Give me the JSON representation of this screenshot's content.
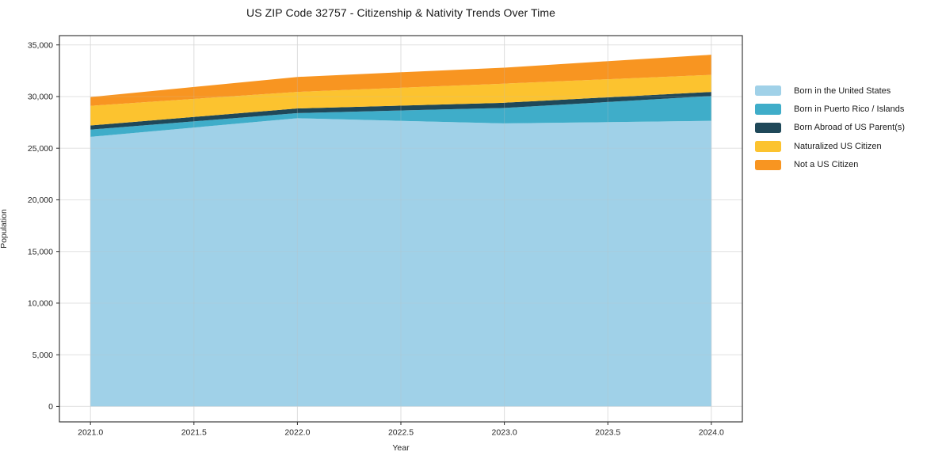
{
  "chart_data": {
    "type": "area",
    "stacked": true,
    "title": "US ZIP Code 32757 - Citizenship & Nativity Trends Over Time",
    "xlabel": "Year",
    "ylabel": "Population",
    "x": [
      2021,
      2022,
      2023,
      2024
    ],
    "series": [
      {
        "name": "Born in the United States",
        "color": "#A0D1E8",
        "values": [
          26100,
          27900,
          27400,
          27650
        ]
      },
      {
        "name": "Born in Puerto Rico / Islands",
        "color": "#3FADC9",
        "values": [
          700,
          500,
          1500,
          2400
        ]
      },
      {
        "name": "Born Abroad of US Parent(s)",
        "color": "#1F4859",
        "values": [
          400,
          450,
          500,
          400
        ]
      },
      {
        "name": "Naturalized US Citizen",
        "color": "#FCC32F",
        "values": [
          1900,
          1600,
          1850,
          1650
        ]
      },
      {
        "name": "Not a US Citizen",
        "color": "#F89521",
        "values": [
          850,
          1450,
          1550,
          1950
        ]
      }
    ],
    "totals": [
      29950,
      31900,
      32800,
      34050
    ],
    "x_ticks": {
      "values": [
        2021.0,
        2021.5,
        2022.0,
        2022.5,
        2023.0,
        2023.5,
        2024.0
      ],
      "labels": [
        "2021.0",
        "2021.5",
        "2022.0",
        "2022.5",
        "2023.0",
        "2023.5",
        "2024.0"
      ]
    },
    "y_ticks": {
      "values": [
        0,
        5000,
        10000,
        15000,
        20000,
        25000,
        30000,
        35000
      ],
      "labels": [
        "0",
        "5,000",
        "10,000",
        "15,000",
        "20,000",
        "25,000",
        "30,000",
        "35,000"
      ]
    },
    "xlim": [
      2020.85,
      2024.15
    ],
    "ylim": [
      -1500,
      35900
    ],
    "grid": true,
    "legend_position": "right"
  }
}
